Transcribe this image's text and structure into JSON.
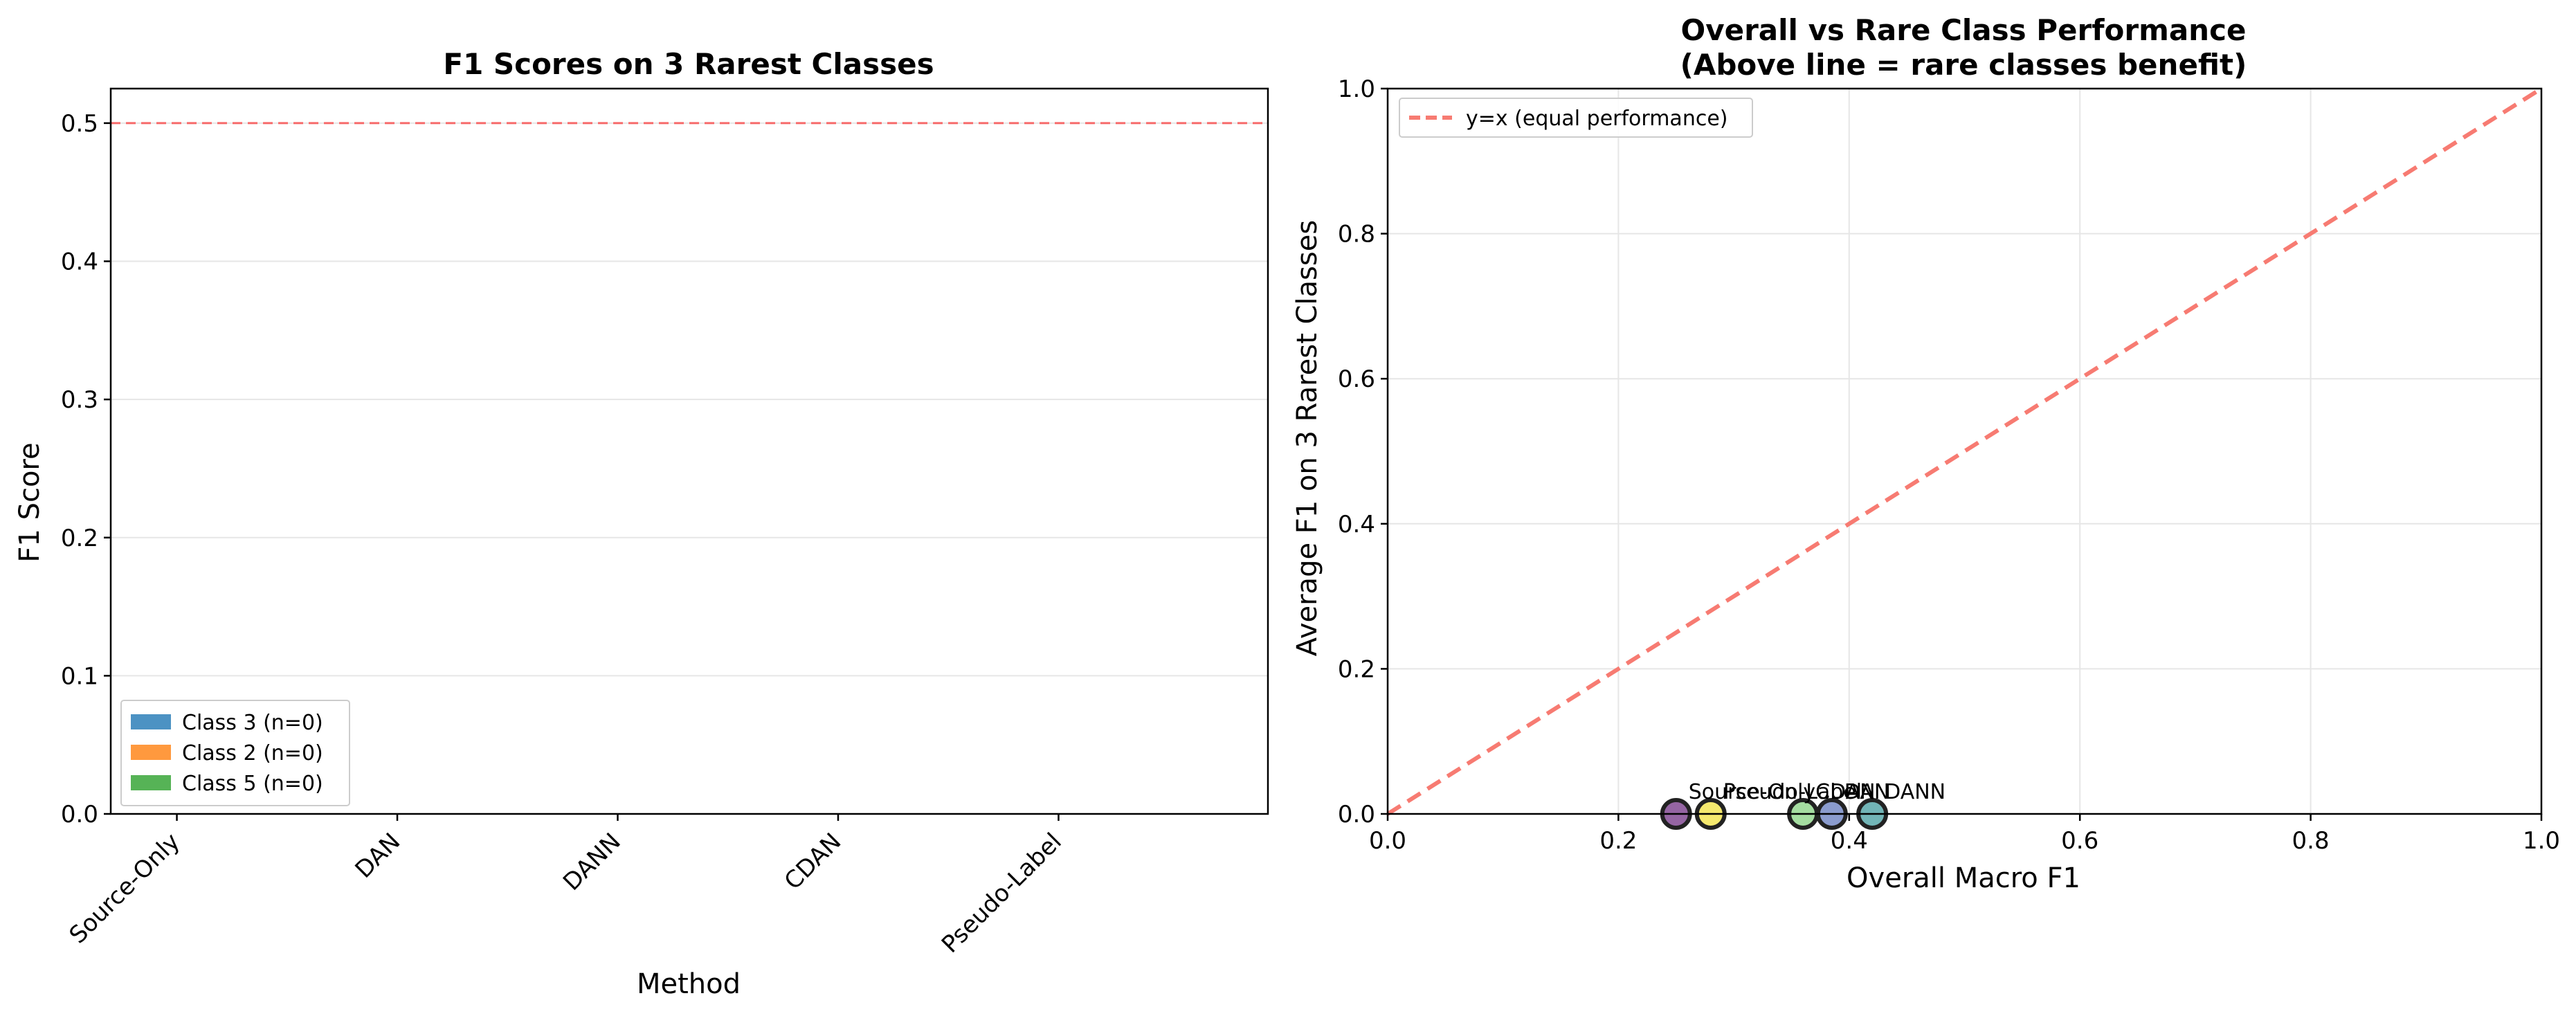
{
  "chart_data": [
    {
      "type": "bar",
      "title": "F1 Scores on 3 Rarest Classes",
      "xlabel": "Method",
      "ylabel": "F1 Score",
      "categories": [
        "Source-Only",
        "DAN",
        "DANN",
        "CDAN",
        "Pseudo-Label"
      ],
      "series": [
        {
          "name": "Class 3 (n=0)",
          "color": "#1f77b4",
          "values": [
            0,
            0,
            0,
            0,
            0
          ]
        },
        {
          "name": "Class 2 (n=0)",
          "color": "#ff7f0e",
          "values": [
            0,
            0,
            0,
            0,
            0
          ]
        },
        {
          "name": "Class 5 (n=0)",
          "color": "#2ca02c",
          "values": [
            0,
            0,
            0,
            0,
            0
          ]
        }
      ],
      "ylim": [
        0,
        0.525
      ],
      "yticks": [
        "0.0",
        "0.1",
        "0.2",
        "0.3",
        "0.4",
        "0.5"
      ],
      "reference_line": {
        "y": 0.5,
        "style": "dashed",
        "color": "#ff0000"
      },
      "grid": "y",
      "legend_position": "lower-left"
    },
    {
      "type": "scatter",
      "title_lines": [
        "Overall vs Rare Class Performance",
        "(Above line = rare classes benefit)"
      ],
      "xlabel": "Overall Macro F1",
      "ylabel": "Average F1 on 3 Rarest Classes",
      "xlim": [
        0,
        1
      ],
      "ylim": [
        0,
        1
      ],
      "xticks": [
        "0.0",
        "0.2",
        "0.4",
        "0.6",
        "0.8",
        "1.0"
      ],
      "yticks": [
        "0.0",
        "0.2",
        "0.4",
        "0.6",
        "0.8",
        "1.0"
      ],
      "grid": "both",
      "legend_position": "top-left",
      "diagonal": {
        "label": "y=x (equal performance)",
        "color": "#f77b72",
        "style": "dashed"
      },
      "points": [
        {
          "label": "Source-Only",
          "x": 0.25,
          "y": 0,
          "color": "#7b3f8c"
        },
        {
          "label": "Pseudo-Label",
          "x": 0.28,
          "y": 0,
          "color": "#f2e34a"
        },
        {
          "label": "CDAN",
          "x": 0.36,
          "y": 0,
          "color": "#8fd48a"
        },
        {
          "label": "DAN",
          "x": 0.385,
          "y": 0,
          "color": "#6e83c2"
        },
        {
          "label": "DANN",
          "x": 0.42,
          "y": 0,
          "color": "#4fa3a5"
        }
      ]
    }
  ]
}
